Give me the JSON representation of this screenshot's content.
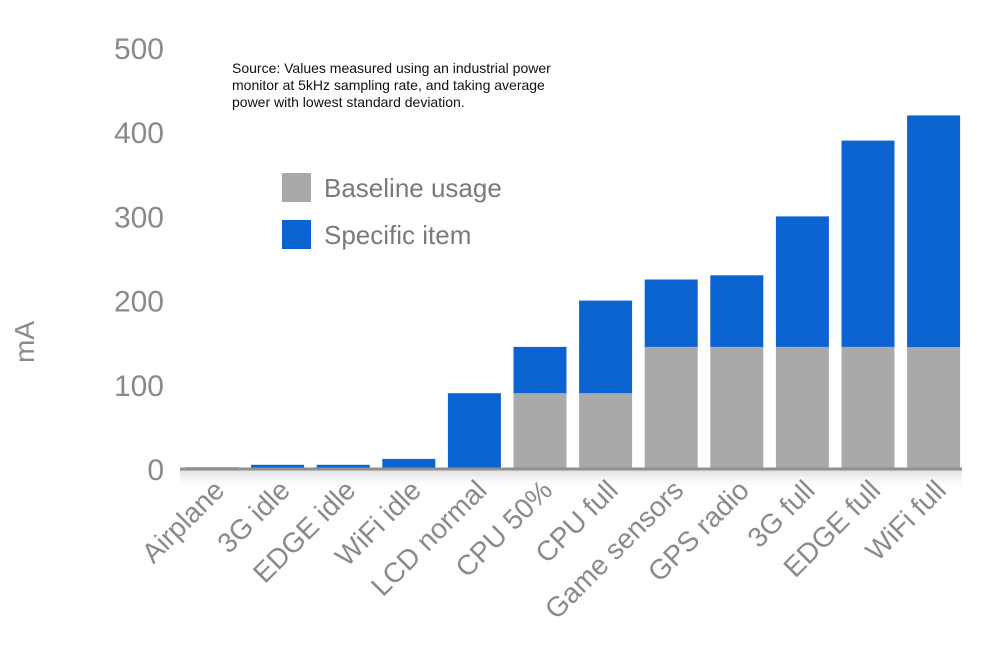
{
  "chart_data": {
    "type": "bar",
    "stacked": true,
    "ylabel": "mA",
    "ylim": [
      0,
      500
    ],
    "yticks": [
      0,
      100,
      200,
      300,
      400,
      500
    ],
    "grid": false,
    "legend_position": "top-left",
    "categories": [
      "Airplane",
      "3G idle",
      "EDGE idle",
      "WiFi idle",
      "LCD normal",
      "CPU 50%",
      "CPU full",
      "Game sensors",
      "GPS radio",
      "3G full",
      "EDGE full",
      "WiFi full"
    ],
    "series": [
      {
        "name": "Baseline usage",
        "color": "#a9a9a9",
        "values": [
          0,
          0,
          0,
          0,
          0,
          90,
          90,
          145,
          145,
          145,
          145,
          145
        ]
      },
      {
        "name": "Specific item",
        "color": "#0a63d1",
        "values": [
          2,
          5,
          5,
          12,
          90,
          55,
          110,
          80,
          85,
          155,
          245,
          275
        ]
      }
    ],
    "annotation": "Source: Values measured using an industrial power\nmonitor at 5kHz sampling rate, and taking average\npower with lowest standard deviation."
  }
}
